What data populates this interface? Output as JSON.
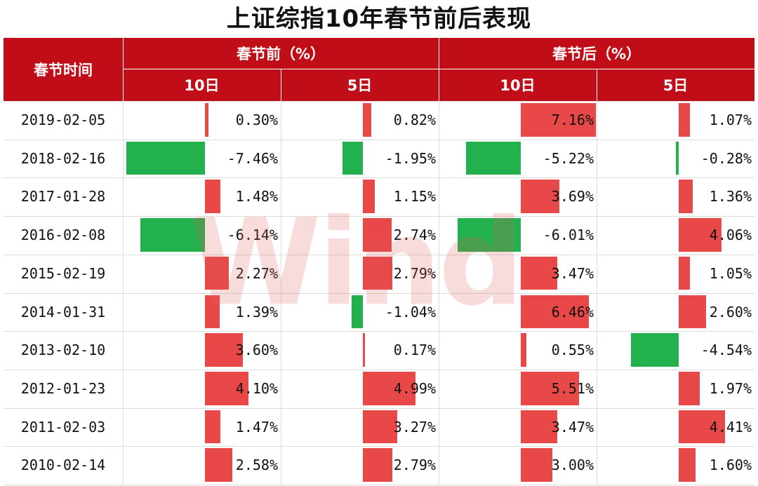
{
  "title": "上证综指10年春节前后表现",
  "header": {
    "date_col": "春节时间",
    "before": "春节前（%）",
    "after": "春节后（%）",
    "sub": [
      "10日",
      "5日",
      "10日",
      "5日"
    ]
  },
  "colors": {
    "header_bg": "#c10d17",
    "positive": "#e84848",
    "negative": "#22b14c"
  },
  "watermark": "Wind",
  "chart_data": {
    "type": "table",
    "title": "上证综指10年春节前后表现",
    "columns": [
      "春节时间",
      "春节前 10日",
      "春节前 5日",
      "春节后 10日",
      "春节后 5日"
    ],
    "rows": [
      {
        "date": "2019-02-05",
        "values": [
          0.3,
          0.82,
          7.16,
          1.07
        ],
        "labels": [
          "0.30%",
          "0.82%",
          "7.16%",
          "1.07%"
        ]
      },
      {
        "date": "2018-02-16",
        "values": [
          -7.46,
          -1.95,
          -5.22,
          -0.28
        ],
        "labels": [
          "-7.46%",
          "-1.95%",
          "-5.22%",
          "-0.28%"
        ]
      },
      {
        "date": "2017-01-28",
        "values": [
          1.48,
          1.15,
          3.69,
          1.36
        ],
        "labels": [
          "1.48%",
          "1.15%",
          "3.69%",
          "1.36%"
        ]
      },
      {
        "date": "2016-02-08",
        "values": [
          -6.14,
          2.74,
          -6.01,
          4.06
        ],
        "labels": [
          "-6.14%",
          "2.74%",
          "-6.01%",
          "4.06%"
        ]
      },
      {
        "date": "2015-02-19",
        "values": [
          2.27,
          2.79,
          3.47,
          1.05
        ],
        "labels": [
          "2.27%",
          "2.79%",
          "3.47%",
          "1.05%"
        ]
      },
      {
        "date": "2014-01-31",
        "values": [
          1.39,
          -1.04,
          6.46,
          2.6
        ],
        "labels": [
          "1.39%",
          "-1.04%",
          "6.46%",
          "2.60%"
        ]
      },
      {
        "date": "2013-02-10",
        "values": [
          3.6,
          0.17,
          0.55,
          -4.54
        ],
        "labels": [
          "3.60%",
          "0.17%",
          "0.55%",
          "-4.54%"
        ]
      },
      {
        "date": "2012-01-23",
        "values": [
          4.1,
          4.99,
          5.51,
          1.97
        ],
        "labels": [
          "4.10%",
          "4.99%",
          "5.51%",
          "1.97%"
        ]
      },
      {
        "date": "2011-02-03",
        "values": [
          1.47,
          3.27,
          3.47,
          4.41
        ],
        "labels": [
          "1.47%",
          "3.27%",
          "3.47%",
          "4.41%"
        ]
      },
      {
        "date": "2010-02-14",
        "values": [
          2.58,
          2.79,
          3.0,
          1.6
        ],
        "labels": [
          "2.58%",
          "2.79%",
          "3.00%",
          "1.60%"
        ]
      }
    ]
  }
}
